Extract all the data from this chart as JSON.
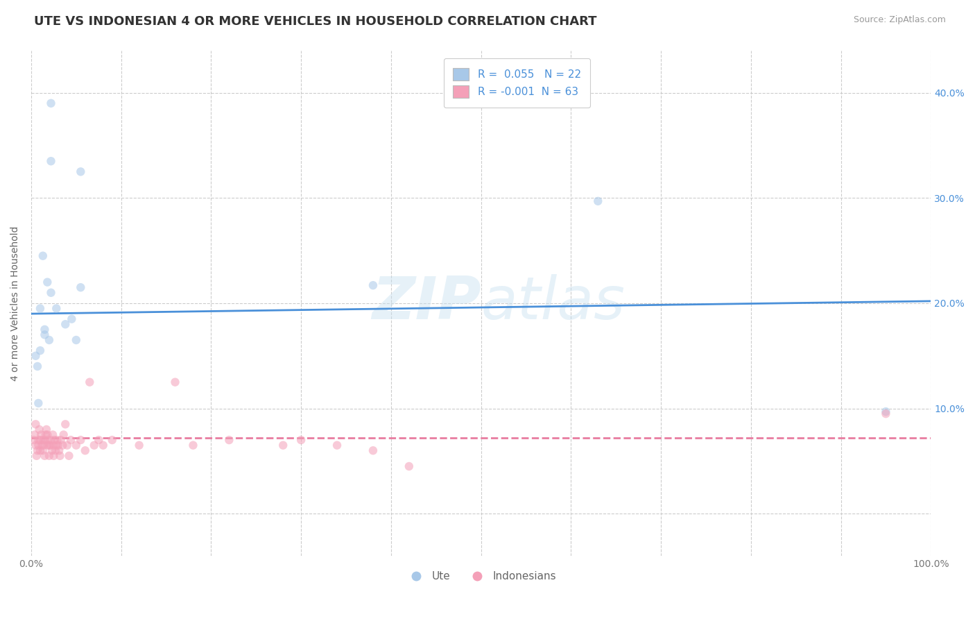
{
  "title": "UTE VS INDONESIAN 4 OR MORE VEHICLES IN HOUSEHOLD CORRELATION CHART",
  "source": "Source: ZipAtlas.com",
  "ylabel": "4 or more Vehicles in Household",
  "xlim": [
    0,
    1.0
  ],
  "ylim": [
    -0.04,
    0.44
  ],
  "xticks": [
    0.0,
    0.1,
    0.2,
    0.3,
    0.4,
    0.5,
    0.6,
    0.7,
    0.8,
    0.9,
    1.0
  ],
  "xticklabels": [
    "0.0%",
    "",
    "",
    "",
    "",
    "",
    "",
    "",
    "",
    "",
    "100.0%"
  ],
  "yticks": [
    0.0,
    0.1,
    0.2,
    0.3,
    0.4
  ],
  "yticklabels_right": [
    "",
    "10.0%",
    "20.0%",
    "30.0%",
    "40.0%"
  ],
  "ute_color": "#a8c8e8",
  "indonesian_color": "#f4a0b8",
  "ute_line_color": "#4a90d9",
  "indonesian_line_color": "#e87ca0",
  "r_ute": 0.055,
  "n_ute": 22,
  "r_indonesian": -0.001,
  "n_indonesian": 63,
  "watermark": "ZIPatlas",
  "ute_line_x0": 0.0,
  "ute_line_y0": 0.19,
  "ute_line_x1": 1.0,
  "ute_line_y1": 0.202,
  "indo_line_x0": 0.0,
  "indo_line_y0": 0.072,
  "indo_line_x1": 1.0,
  "indo_line_y1": 0.072,
  "ute_scatter_x": [
    0.022,
    0.022,
    0.055,
    0.018,
    0.013,
    0.022,
    0.028,
    0.038,
    0.045,
    0.05,
    0.055,
    0.01,
    0.015,
    0.005,
    0.007,
    0.01,
    0.015,
    0.02,
    0.008,
    0.63,
    0.95,
    0.38
  ],
  "ute_scatter_y": [
    0.39,
    0.335,
    0.325,
    0.22,
    0.245,
    0.21,
    0.195,
    0.18,
    0.185,
    0.165,
    0.215,
    0.195,
    0.175,
    0.15,
    0.14,
    0.155,
    0.17,
    0.165,
    0.105,
    0.297,
    0.097,
    0.217
  ],
  "indonesian_scatter_x": [
    0.003,
    0.004,
    0.005,
    0.005,
    0.006,
    0.007,
    0.008,
    0.008,
    0.009,
    0.01,
    0.01,
    0.011,
    0.012,
    0.013,
    0.013,
    0.014,
    0.015,
    0.015,
    0.016,
    0.017,
    0.018,
    0.018,
    0.019,
    0.02,
    0.02,
    0.021,
    0.022,
    0.023,
    0.024,
    0.025,
    0.025,
    0.026,
    0.027,
    0.028,
    0.029,
    0.03,
    0.031,
    0.032,
    0.033,
    0.035,
    0.036,
    0.038,
    0.04,
    0.042,
    0.044,
    0.05,
    0.055,
    0.06,
    0.065,
    0.07,
    0.075,
    0.08,
    0.09,
    0.12,
    0.16,
    0.18,
    0.22,
    0.28,
    0.3,
    0.34,
    0.38,
    0.42,
    0.95
  ],
  "indonesian_scatter_y": [
    0.07,
    0.075,
    0.085,
    0.065,
    0.055,
    0.06,
    0.065,
    0.07,
    0.08,
    0.06,
    0.07,
    0.075,
    0.065,
    0.07,
    0.06,
    0.065,
    0.055,
    0.07,
    0.075,
    0.08,
    0.065,
    0.075,
    0.07,
    0.065,
    0.055,
    0.065,
    0.07,
    0.06,
    0.075,
    0.055,
    0.065,
    0.07,
    0.06,
    0.065,
    0.07,
    0.065,
    0.06,
    0.055,
    0.07,
    0.065,
    0.075,
    0.085,
    0.065,
    0.055,
    0.07,
    0.065,
    0.07,
    0.06,
    0.125,
    0.065,
    0.07,
    0.065,
    0.07,
    0.065,
    0.125,
    0.065,
    0.07,
    0.065,
    0.07,
    0.065,
    0.06,
    0.045,
    0.095
  ],
  "grid_color": "#cccccc",
  "background_color": "#ffffff",
  "title_fontsize": 13,
  "axis_label_fontsize": 10,
  "tick_fontsize": 10,
  "legend_fontsize": 11,
  "dot_size": 80,
  "dot_alpha": 0.55
}
